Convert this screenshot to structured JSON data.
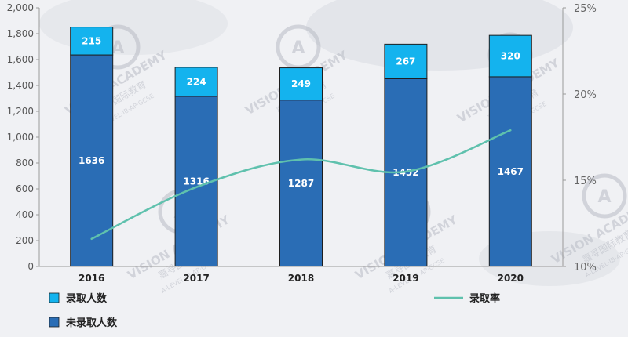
{
  "chart_data": {
    "type": "bar",
    "stacked": true,
    "categories": [
      "2016",
      "2017",
      "2018",
      "2019",
      "2020"
    ],
    "series": [
      {
        "name": "未录取人数",
        "values": [
          1636,
          1316,
          1287,
          1452,
          1467
        ],
        "color": "#2a6db5",
        "stack_position": "bottom"
      },
      {
        "name": "录取人数",
        "values": [
          215,
          224,
          249,
          267,
          320
        ],
        "color": "#14b3ee",
        "stack_position": "top"
      }
    ],
    "line_series": {
      "name": "录取率",
      "axis": "right",
      "values": [
        0.116,
        0.146,
        0.162,
        0.155,
        0.179
      ],
      "color": "#5fc1ad"
    },
    "ylim": [
      0,
      2000
    ],
    "yticks": [
      "0",
      "200",
      "400",
      "600",
      "800",
      "1,000",
      "1,200",
      "1,400",
      "1,600",
      "1,800",
      "2,000"
    ],
    "y2lim": [
      0.1,
      0.25
    ],
    "y2ticks": [
      "10%",
      "15%",
      "20%",
      "25%"
    ],
    "grid": false,
    "legend_position": "bottom"
  },
  "watermark": {
    "text_en": "VISION ACADEMY",
    "text_cn": "嘉寻国际教育",
    "text_sub": "A-LEVEL·IB·AP·GCSE",
    "logo_text": "A"
  },
  "colors": {
    "background": "#f0f1f4",
    "bar_border": "#1e1e1e",
    "watermark": "#b9bcc5"
  }
}
